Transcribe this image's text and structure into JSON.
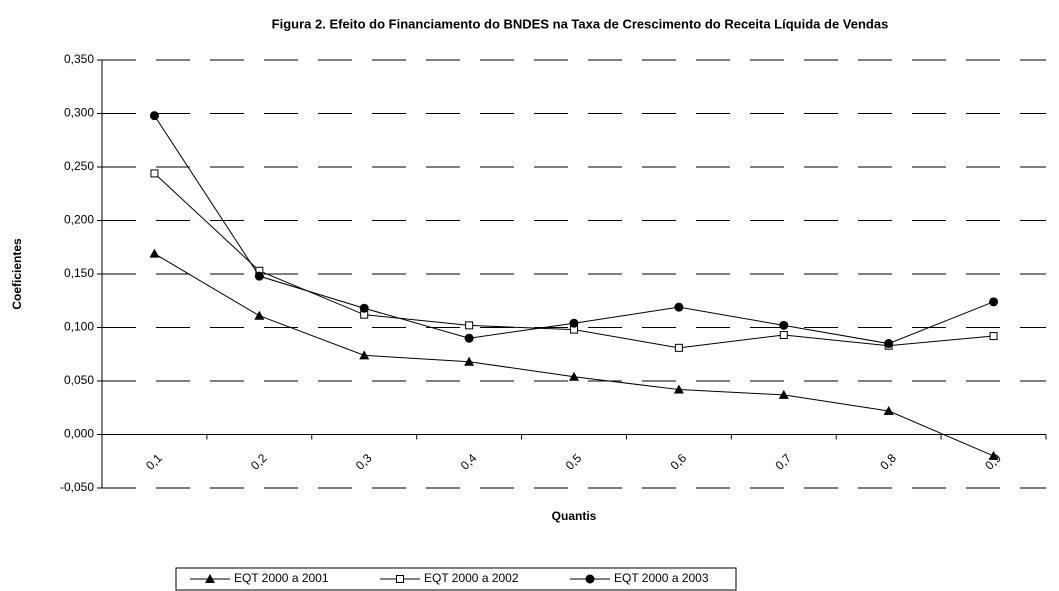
{
  "chart_data": {
    "type": "line",
    "title": "Figura 2. Efeito do Financiamento do BNDES na Taxa de Crescimento do Receita Líquida de Vendas",
    "x_label": "Quantis",
    "y_label": "Coeficientes",
    "categories": [
      "0,1",
      "0,2",
      "0,3",
      "0,4",
      "0,5",
      "0,6",
      "0,7",
      "0,8",
      "0,9"
    ],
    "series": [
      {
        "name": "EQT 2000 a 2001",
        "color": "#000000",
        "marker": "triangle",
        "values": [
          0.169,
          0.111,
          0.074,
          0.068,
          0.054,
          0.042,
          0.037,
          0.022,
          -0.02
        ]
      },
      {
        "name": "EQT 2000 a 2002",
        "color": "#000000",
        "marker": "square",
        "values": [
          0.244,
          0.153,
          0.112,
          0.102,
          0.098,
          0.081,
          0.093,
          0.083,
          0.092
        ]
      },
      {
        "name": "EQT 2000 a 2003",
        "color": "#000000",
        "marker": "circle",
        "values": [
          0.298,
          0.148,
          0.118,
          0.09,
          0.104,
          0.119,
          0.102,
          0.085,
          0.124
        ]
      }
    ],
    "ylim": [
      -0.05,
      0.35
    ],
    "yticks": [
      {
        "value": -0.05,
        "label": "-0,050"
      },
      {
        "value": 0,
        "label": "0,000"
      },
      {
        "value": 0.05,
        "label": "0,050"
      },
      {
        "value": 0.1,
        "label": "0,100"
      },
      {
        "value": 0.15,
        "label": "0,150"
      },
      {
        "value": 0.2,
        "label": "0,200"
      },
      {
        "value": 0.25,
        "label": "0,250"
      },
      {
        "value": 0.3,
        "label": "0,300"
      },
      {
        "value": 0.35,
        "label": "0,350"
      }
    ],
    "grid": true,
    "legend": "bottom"
  }
}
